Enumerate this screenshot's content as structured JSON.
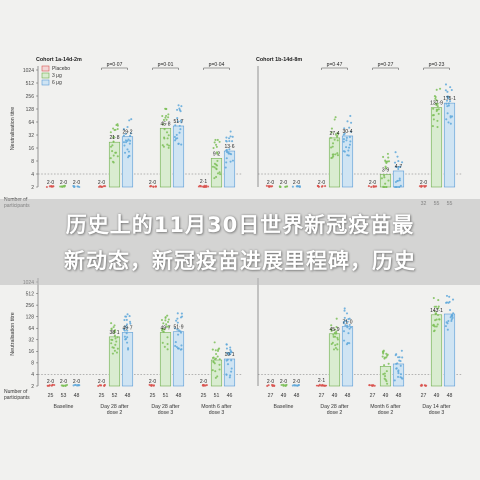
{
  "banner": {
    "line1": "历史上的11月30日世界新冠疫苗最",
    "line2": "新动态，新冠疫苗进展里程碑，历史"
  },
  "legend": {
    "entries": [
      "Placebo",
      "3 μg",
      "6 μg"
    ]
  },
  "chart_data": [
    {
      "type": "bar",
      "title": "Cohort 1a-14d-2m",
      "ylabel": "Neutralisation titre",
      "row_label": "Number of participants",
      "yticks": [
        "2",
        "4",
        "8",
        "16",
        "32",
        "64",
        "128",
        "256",
        "512",
        "1024"
      ],
      "groups": [
        {
          "labels": [
            "2·0",
            "2·0",
            "2·0"
          ],
          "values": [
            2.0,
            2.0,
            2.0
          ],
          "n": [
            "",
            "",
            ""
          ]
        },
        {
          "labels": [
            "2·0",
            "21·8",
            "29·2"
          ],
          "values": [
            2.0,
            21.8,
            29.2
          ],
          "n": [
            "",
            "",
            ""
          ],
          "p": "p=0·07"
        },
        {
          "labels": [
            "2·0",
            "45·8",
            "51·7"
          ],
          "values": [
            2.0,
            45.8,
            51.7
          ],
          "n": [
            "",
            "",
            ""
          ],
          "p": "p=0·01"
        },
        {
          "labels": [
            "2·1",
            "9·2",
            "13·6"
          ],
          "values": [
            2.1,
            9.2,
            13.6
          ],
          "n": [
            "",
            "",
            ""
          ],
          "p": "p=0·04"
        }
      ]
    },
    {
      "type": "bar",
      "title": "Cohort 1b-14d-8m",
      "ylabel": "",
      "row_label": "",
      "yticks": [],
      "groups": [
        {
          "labels": [
            "2·0",
            "2·0",
            "2·0"
          ],
          "values": [
            2.0,
            2.0,
            2.0
          ],
          "n": [
            "",
            "",
            ""
          ]
        },
        {
          "labels": [
            "2·0",
            "27·4",
            "30·4"
          ],
          "values": [
            2.0,
            27.4,
            30.4
          ],
          "n": [
            "",
            "",
            ""
          ],
          "p": "p=0·47"
        },
        {
          "labels": [
            "2·0",
            "3·9",
            "4·7"
          ],
          "values": [
            2.0,
            3.9,
            4.7
          ],
          "n": [
            "",
            "",
            ""
          ],
          "p": "p=0·27"
        },
        {
          "labels": [
            "2·0",
            "137·9",
            "175·1"
          ],
          "values": [
            2.0,
            137.9,
            175.1
          ],
          "n": [
            "32",
            "55",
            "55"
          ],
          "p": "p=0·23"
        }
      ]
    },
    {
      "type": "bar",
      "title": "",
      "ylabel": "Neutralisation titre",
      "row_label": "Number of participants",
      "yticks": [
        "2",
        "4",
        "8",
        "16",
        "32",
        "64",
        "128",
        "256",
        "512",
        "1024"
      ],
      "groups": [
        {
          "labels": [
            "2·0",
            "2·0",
            "2·0"
          ],
          "values": [
            2.0,
            2.0,
            2.0
          ],
          "n": [
            "25",
            "53",
            "48"
          ],
          "x": "Baseline"
        },
        {
          "labels": [
            "2·0",
            "38·1",
            "49·7"
          ],
          "values": [
            2.0,
            38.1,
            49.7
          ],
          "n": [
            "25",
            "52",
            "48"
          ],
          "x": "Day 28 after dose 2"
        },
        {
          "labels": [
            "2·0",
            "49·7",
            "51·9"
          ],
          "values": [
            2.0,
            49.7,
            51.9
          ],
          "n": [
            "25",
            "51",
            "48"
          ],
          "x": "Day 28 after dose 3"
        },
        {
          "labels": [
            "2·0",
            "",
            "10·1"
          ],
          "values": [
            2.0,
            9.5,
            10.1
          ],
          "n": [
            "25",
            "51",
            "46"
          ],
          "x": "Month 6 after dose 3"
        }
      ]
    },
    {
      "type": "bar",
      "title": "",
      "ylabel": "",
      "row_label": "",
      "yticks": [],
      "groups": [
        {
          "labels": [
            "2·0",
            "2·0",
            "2·0"
          ],
          "values": [
            2.0,
            2.0,
            2.0
          ],
          "n": [
            "27",
            "49",
            "48"
          ],
          "x": "Baseline"
        },
        {
          "labels": [
            "2·1",
            "45·9",
            "71·0"
          ],
          "values": [
            2.1,
            45.9,
            71.0
          ],
          "n": [
            "27",
            "49",
            "48"
          ],
          "x": "Day 28 after dose 2"
        },
        {
          "labels": [
            "",
            "",
            ""
          ],
          "values": [
            2.0,
            6.5,
            7.5
          ],
          "n": [
            "27",
            "49",
            "48"
          ],
          "x": "Month 6 after dose 2"
        },
        {
          "labels": [
            "",
            "143·1",
            ""
          ],
          "values": [
            2.0,
            143.1,
            150.0
          ],
          "n": [
            "27",
            "49",
            "48"
          ],
          "x": "Day 14 after dose 3"
        }
      ]
    }
  ]
}
